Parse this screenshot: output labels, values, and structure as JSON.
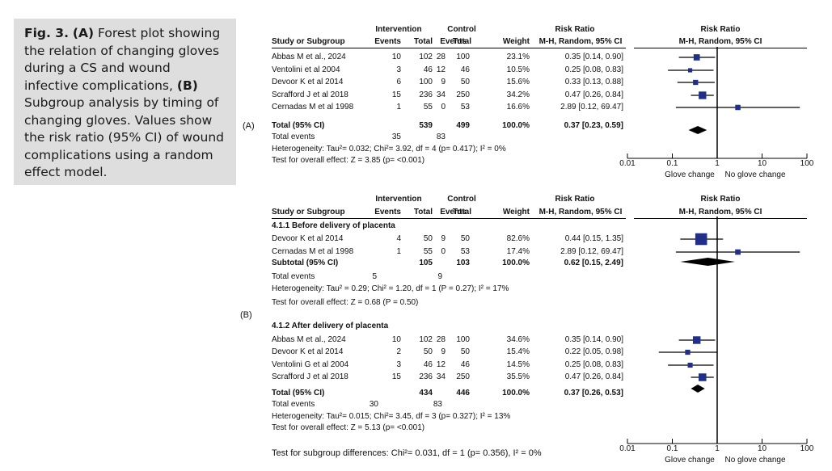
{
  "caption": {
    "fig": "Fig. 3.",
    "a_tag": "(A)",
    "a_text": "Forest plot showing the relation of changing gloves during a CS and wound infective complications,",
    "b_tag": "(B)",
    "b_text": "Subgroup analysis by timing of changing gloves. Values show the risk ratio (95% CI) of wound complications using a random effect model."
  },
  "panel_labels": {
    "a": "(A)",
    "b": "(B)"
  },
  "headers": {
    "intervention": "Intervention",
    "control": "Control",
    "risk_ratio": "Risk Ratio",
    "study": "Study or Subgroup",
    "events": "Events",
    "total": "Total",
    "weight": "Weight",
    "method": "M-H, Random, 95% CI"
  },
  "axis": {
    "ticks": [
      "0.01",
      "0.1",
      "1",
      "10",
      "100"
    ],
    "left_label": "Glove change",
    "right_label": "No glove change"
  },
  "colors": {
    "marker": "#1f2f8a",
    "line": "#000000"
  },
  "chart_data": [
    {
      "type": "forest",
      "panel": "A",
      "xscale": "log",
      "xlim": [
        0.01,
        100
      ],
      "studies": [
        {
          "name": "Abbas M et al., 2024",
          "ie": "10",
          "it": "102",
          "ce": "28",
          "ct": "100",
          "weight": "23.1%",
          "ci_text": "0.35 [0.14, 0.90]",
          "rr": 0.35,
          "lo": 0.14,
          "hi": 0.9,
          "w": 23.1
        },
        {
          "name": "Ventolini et al 2004",
          "ie": "3",
          "it": "46",
          "ce": "12",
          "ct": "46",
          "weight": "10.5%",
          "ci_text": "0.25 [0.08, 0.83]",
          "rr": 0.25,
          "lo": 0.08,
          "hi": 0.83,
          "w": 10.5
        },
        {
          "name": "Devoor K et al 2014",
          "ie": "6",
          "it": "100",
          "ce": "9",
          "ct": "50",
          "weight": "15.6%",
          "ci_text": "0.33 [0.13, 0.88]",
          "rr": 0.33,
          "lo": 0.13,
          "hi": 0.88,
          "w": 15.6
        },
        {
          "name": "Scrafford J et al 2018",
          "ie": "15",
          "it": "236",
          "ce": "34",
          "ct": "250",
          "weight": "34.2%",
          "ci_text": "0.47 [0.26, 0.84]",
          "rr": 0.47,
          "lo": 0.26,
          "hi": 0.84,
          "w": 34.2
        },
        {
          "name": "Cernadas M et al 1998",
          "ie": "1",
          "it": "55",
          "ce": "0",
          "ct": "53",
          "weight": "16.6%",
          "ci_text": "2.89 [0.12, 69.47]",
          "rr": 2.89,
          "lo": 0.12,
          "hi": 69.47,
          "w": 16.6
        }
      ],
      "total": {
        "name": "Total (95% CI)",
        "it": "539",
        "ct": "499",
        "weight": "100.0%",
        "ci_text": "0.37 [0.23, 0.59]",
        "rr": 0.37,
        "lo": 0.23,
        "hi": 0.59
      },
      "total_events": {
        "label": "Total events",
        "ie": "35",
        "ce": "83"
      },
      "heterogeneity": "Heterogeneity: Tau²= 0.032; Chi²= 3.92, df = 4 (p= 0.417); I² = 0%",
      "overall": "Test for overall effect: Z = 3.85 (p= <0.001)"
    },
    {
      "type": "forest",
      "panel": "B",
      "xscale": "log",
      "xlim": [
        0.01,
        100
      ],
      "subgroups": [
        {
          "title": "4.1.1 Before delivery of placenta",
          "studies": [
            {
              "name": "Devoor K et al 2014",
              "ie": "4",
              "it": "50",
              "ce": "9",
              "ct": "50",
              "weight": "82.6%",
              "ci_text": "0.44 [0.15, 1.35]",
              "rr": 0.44,
              "lo": 0.15,
              "hi": 1.35,
              "w": 82.6
            },
            {
              "name": "Cernadas M et al 1998",
              "ie": "1",
              "it": "55",
              "ce": "0",
              "ct": "53",
              "weight": "17.4%",
              "ci_text": "2.89 [0.12, 69.47]",
              "rr": 2.89,
              "lo": 0.12,
              "hi": 69.47,
              "w": 17.4
            }
          ],
          "subtotal": {
            "name": "Subtotal (95% CI)",
            "it": "105",
            "ct": "103",
            "weight": "100.0%",
            "ci_text": "0.62 [0.15, 2.49]",
            "rr": 0.62,
            "lo": 0.15,
            "hi": 2.49
          },
          "total_events": {
            "label": "Total events",
            "ie": "5",
            "ce": "9"
          },
          "heterogeneity": "Heterogeneity: Tau² = 0.29; Chi² = 1.20, df = 1 (P = 0.27); I² = 17%",
          "overall": "Test for overall effect: Z = 0.68 (P = 0.50)"
        },
        {
          "title": "4.1.2 After delivery of placenta",
          "studies": [
            {
              "name": "Abbas M et al., 2024",
              "ie": "10",
              "it": "102",
              "ce": "28",
              "ct": "100",
              "weight": "34.6%",
              "ci_text": "0.35 [0.14, 0.90]",
              "rr": 0.35,
              "lo": 0.14,
              "hi": 0.9,
              "w": 34.6
            },
            {
              "name": "Devoor K et al 2014",
              "ie": "2",
              "it": "50",
              "ce": "9",
              "ct": "50",
              "weight": "15.4%",
              "ci_text": "0.22 [0.05, 0.98]",
              "rr": 0.22,
              "lo": 0.05,
              "hi": 0.98,
              "w": 15.4
            },
            {
              "name": "Ventolini G et al 2004",
              "ie": "3",
              "it": "46",
              "ce": "12",
              "ct": "46",
              "weight": "14.5%",
              "ci_text": "0.25 [0.08, 0.83]",
              "rr": 0.25,
              "lo": 0.08,
              "hi": 0.83,
              "w": 14.5
            },
            {
              "name": "Scrafford J et al 2018",
              "ie": "15",
              "it": "236",
              "ce": "34",
              "ct": "250",
              "weight": "35.5%",
              "ci_text": "0.47 [0.26, 0.84]",
              "rr": 0.47,
              "lo": 0.26,
              "hi": 0.84,
              "w": 35.5
            }
          ],
          "subtotal": {
            "name": "Total (95% CI)",
            "it": "434",
            "ct": "446",
            "weight": "100.0%",
            "ci_text": "0.37 [0.26, 0.53]",
            "rr": 0.37,
            "lo": 0.26,
            "hi": 0.53
          },
          "total_events": {
            "label": "Total events",
            "ie": "30",
            "ce": "83"
          },
          "heterogeneity": "Heterogeneity: Tau²= 0.015; Chi²= 3.45, df = 3 (p= 0.327); I² = 13%",
          "overall": "Test for overall effect: Z = 5.13 (p= <0.001)"
        }
      ],
      "subgroup_differences": "Test for subgroup differences: Chi²= 0.031, df = 1 (p= 0.356), I² = 0%"
    }
  ]
}
